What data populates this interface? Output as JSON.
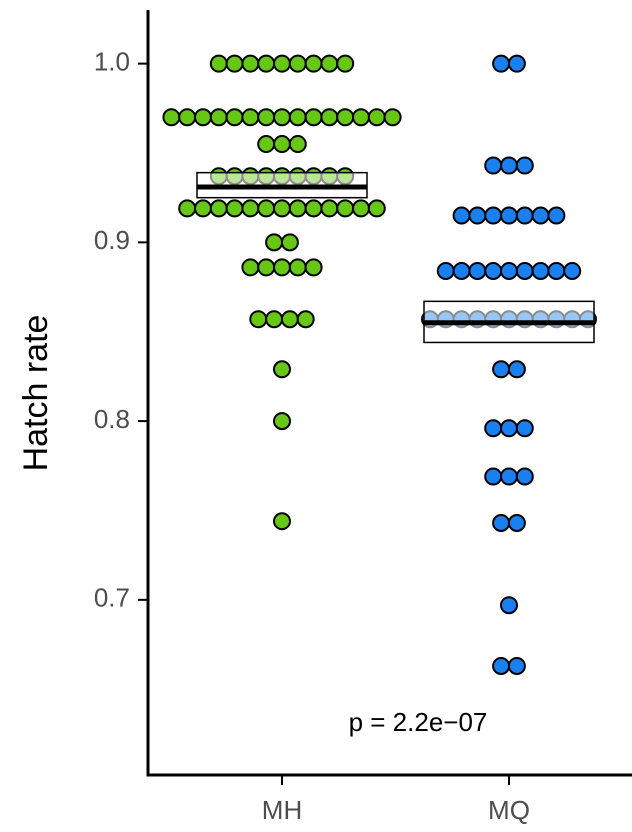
{
  "chart_data": {
    "type": "dotplot",
    "ylabel": "Hatch rate",
    "categories": [
      "MH",
      "MQ"
    ],
    "colors": [
      "#66c814",
      "#1a80f0"
    ],
    "values": [
      [
        1.0,
        1.0,
        1.0,
        1.0,
        1.0,
        1.0,
        1.0,
        1.0,
        1.0,
        0.97,
        0.97,
        0.97,
        0.97,
        0.97,
        0.97,
        0.97,
        0.97,
        0.97,
        0.97,
        0.97,
        0.97,
        0.97,
        0.97,
        0.97,
        0.955,
        0.955,
        0.955,
        0.937,
        0.937,
        0.937,
        0.937,
        0.937,
        0.937,
        0.937,
        0.937,
        0.937,
        0.919,
        0.919,
        0.919,
        0.919,
        0.919,
        0.919,
        0.919,
        0.919,
        0.919,
        0.919,
        0.919,
        0.919,
        0.919,
        0.9,
        0.9,
        0.886,
        0.886,
        0.886,
        0.886,
        0.886,
        0.857,
        0.857,
        0.857,
        0.857,
        0.829,
        0.8,
        0.744
      ],
      [
        1.0,
        1.0,
        0.943,
        0.943,
        0.943,
        0.915,
        0.915,
        0.915,
        0.915,
        0.915,
        0.915,
        0.915,
        0.884,
        0.884,
        0.884,
        0.884,
        0.884,
        0.884,
        0.884,
        0.884,
        0.884,
        0.857,
        0.857,
        0.857,
        0.857,
        0.857,
        0.857,
        0.857,
        0.857,
        0.857,
        0.857,
        0.857,
        0.829,
        0.829,
        0.796,
        0.796,
        0.796,
        0.769,
        0.769,
        0.769,
        0.743,
        0.743,
        0.697,
        0.663,
        0.663
      ]
    ],
    "crossbar": [
      {
        "mean": 0.931,
        "lower": 0.925,
        "upper": 0.939
      },
      {
        "mean": 0.855,
        "lower": 0.844,
        "upper": 0.867
      }
    ],
    "annotation": "p = 2.2e−07",
    "ylim": [
      0.602,
      1.03
    ],
    "yticks": [
      0.7,
      0.8,
      0.9,
      {
        "value": 1.0,
        "label": "1.0"
      }
    ]
  }
}
